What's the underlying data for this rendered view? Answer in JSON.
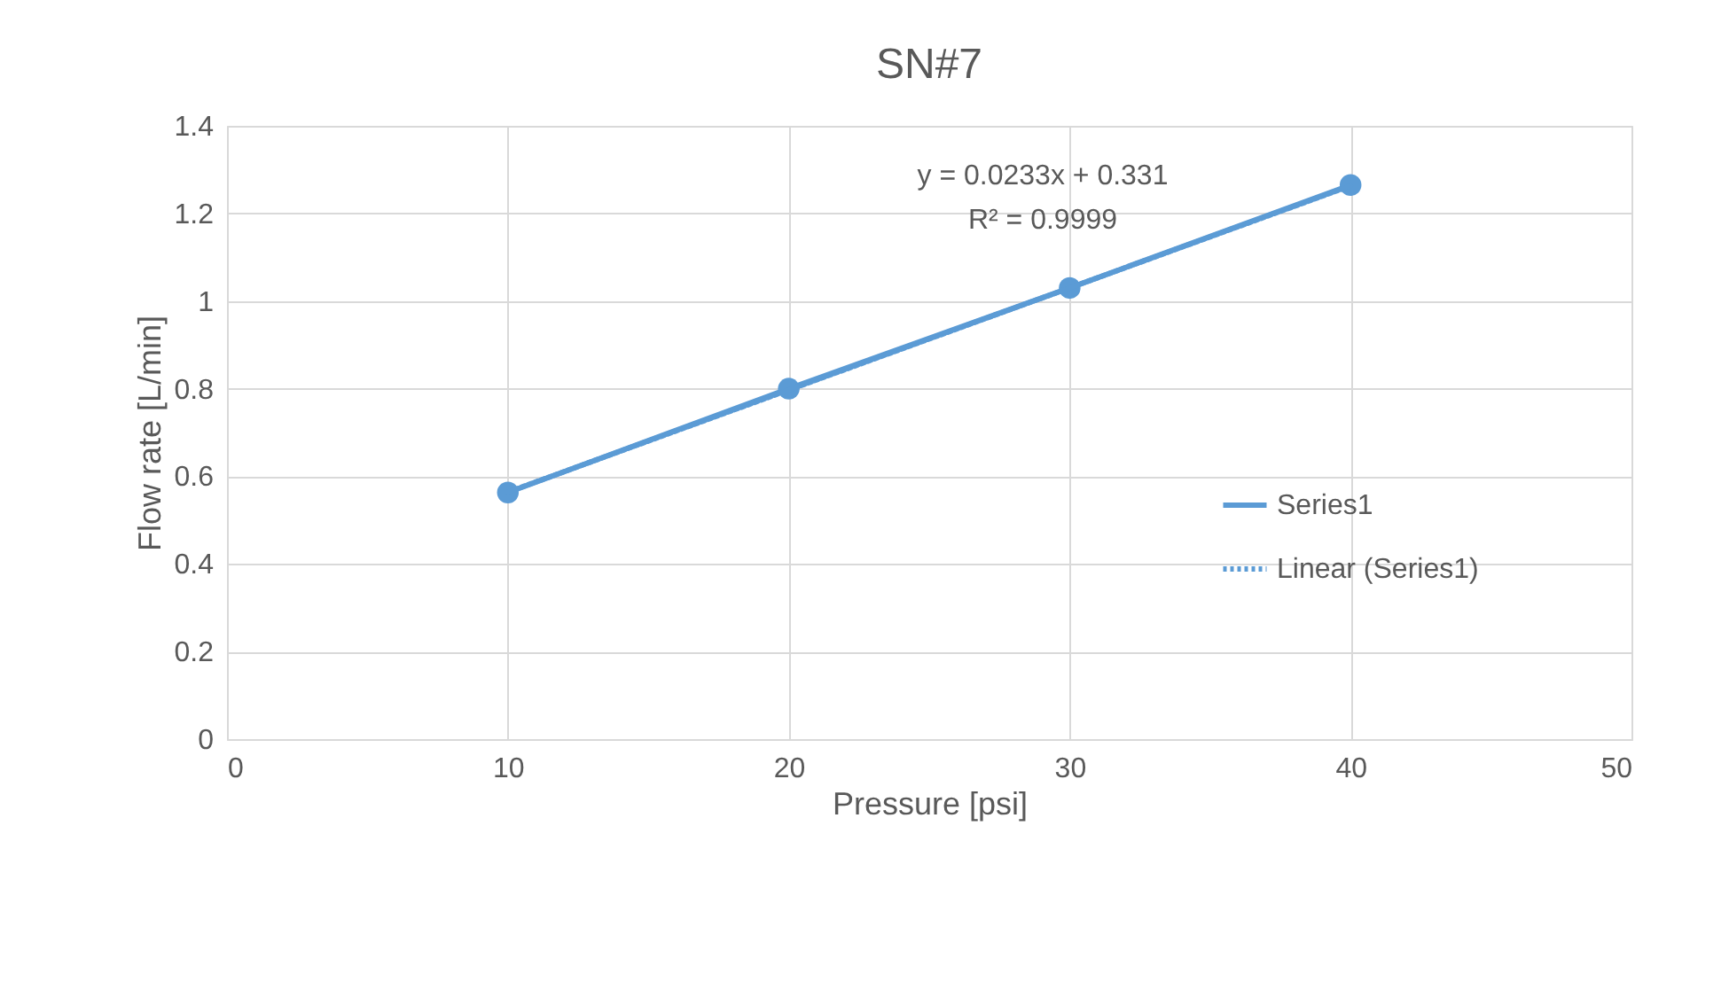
{
  "chart_data": {
    "type": "line",
    "title": "SN#7",
    "xlabel": "Pressure [psi]",
    "ylabel": "Flow rate [L/min]",
    "series": [
      {
        "name": "Series1",
        "color": "#5b9bd5",
        "marker": "circle",
        "line_style": "solid",
        "x": [
          10,
          20,
          30,
          40
        ],
        "values": [
          0.563,
          0.8,
          1.03,
          1.265
        ]
      },
      {
        "name": "Linear (Series1)",
        "color": "#5b9bd5",
        "line_style": "dotted",
        "x": [
          10,
          40
        ],
        "values": [
          0.564,
          1.263
        ]
      }
    ],
    "xlim": [
      0,
      50
    ],
    "xticks": [
      0,
      10,
      20,
      30,
      40,
      50
    ],
    "ylim": [
      0,
      1.4
    ],
    "yticks": [
      0,
      0.2,
      0.4,
      0.6,
      0.8,
      1,
      1.2,
      1.4
    ],
    "annotations": [
      "y = 0.0233x + 0.331",
      "R² = 0.9999"
    ],
    "grid": true,
    "legend": "right"
  }
}
